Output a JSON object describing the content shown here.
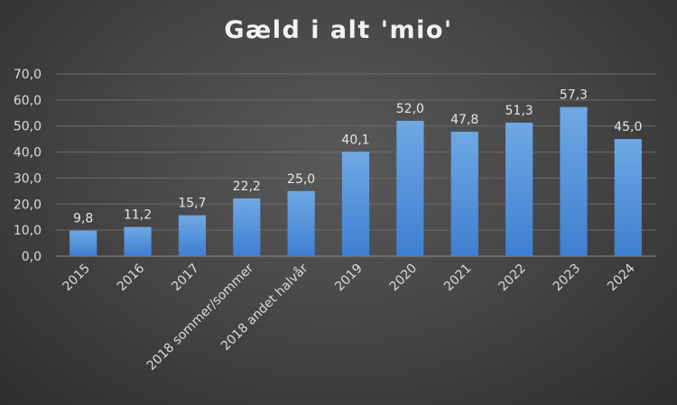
{
  "chart_data": {
    "type": "bar",
    "title": "Gæld i alt 'mio'",
    "categories": [
      "2015",
      "2016",
      "2017",
      "2018 sommer/sommer",
      "2018 andet halvår",
      "2019",
      "2020",
      "2021",
      "2022",
      "2023",
      "2024"
    ],
    "values": [
      9.8,
      11.2,
      15.7,
      22.2,
      25.0,
      40.1,
      52.0,
      47.8,
      51.3,
      57.3,
      45.0
    ],
    "value_labels": [
      "9,8",
      "11,2",
      "15,7",
      "22,2",
      "25,0",
      "40,1",
      "52,0",
      "47,8",
      "51,3",
      "57,3",
      "45,0"
    ],
    "ylim": [
      0,
      70
    ],
    "yticks": [
      "0,0",
      "10,0",
      "20,0",
      "30,0",
      "40,0",
      "50,0",
      "60,0",
      "70,0"
    ],
    "xlabel": "",
    "ylabel": "",
    "grid": true,
    "legend": "none",
    "colors": {
      "bar_top": "#6fa8e4",
      "bar_bottom": "#3f7fd0",
      "grid": "#6a6a6a",
      "axis": "#8c8c8c",
      "text": "#dcdcdc"
    }
  }
}
